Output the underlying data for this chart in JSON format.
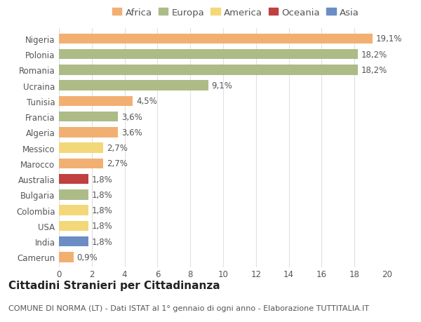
{
  "countries": [
    "Nigeria",
    "Polonia",
    "Romania",
    "Ucraina",
    "Tunisia",
    "Francia",
    "Algeria",
    "Messico",
    "Marocco",
    "Australia",
    "Bulgaria",
    "Colombia",
    "USA",
    "India",
    "Camerun"
  ],
  "values": [
    19.1,
    18.2,
    18.2,
    9.1,
    4.5,
    3.6,
    3.6,
    2.7,
    2.7,
    1.8,
    1.8,
    1.8,
    1.8,
    1.8,
    0.9
  ],
  "labels": [
    "19,1%",
    "18,2%",
    "18,2%",
    "9,1%",
    "4,5%",
    "3,6%",
    "3,6%",
    "2,7%",
    "2,7%",
    "1,8%",
    "1,8%",
    "1,8%",
    "1,8%",
    "1,8%",
    "0,9%"
  ],
  "colors": [
    "#F2AF72",
    "#ADBB87",
    "#ADBB87",
    "#ADBB87",
    "#F2AF72",
    "#ADBB87",
    "#F2AF72",
    "#F2D878",
    "#F2AF72",
    "#C04040",
    "#ADBB87",
    "#F2D878",
    "#F2D878",
    "#6B8DC4",
    "#F2AF72"
  ],
  "legend_labels": [
    "Africa",
    "Europa",
    "America",
    "Oceania",
    "Asia"
  ],
  "legend_colors": [
    "#F2AF72",
    "#ADBB87",
    "#F2D878",
    "#C04040",
    "#6B8DC4"
  ],
  "title": "Cittadini Stranieri per Cittadinanza",
  "subtitle": "COMUNE DI NORMA (LT) - Dati ISTAT al 1° gennaio di ogni anno - Elaborazione TUTTITALIA.IT",
  "xlim": [
    0,
    20
  ],
  "xticks": [
    0,
    2,
    4,
    6,
    8,
    10,
    12,
    14,
    16,
    18,
    20
  ],
  "background_color": "#ffffff",
  "grid_color": "#e0e0e0",
  "bar_height": 0.65,
  "label_fontsize": 8.5,
  "title_fontsize": 11,
  "subtitle_fontsize": 8,
  "tick_fontsize": 8.5,
  "legend_fontsize": 9.5
}
